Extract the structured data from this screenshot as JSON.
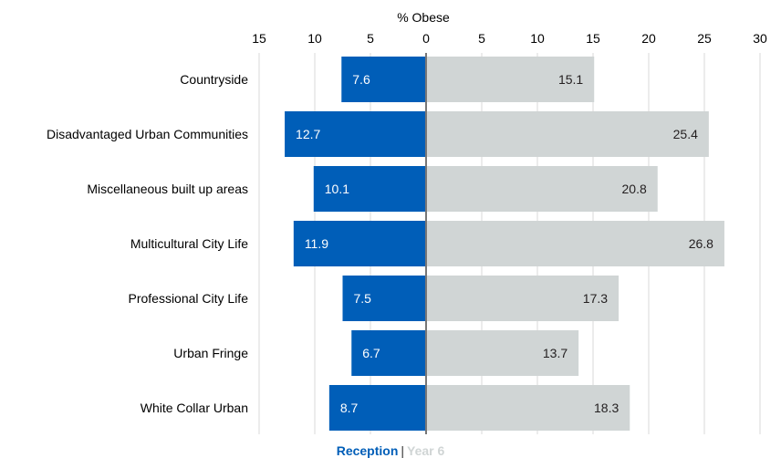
{
  "chart_data": {
    "type": "bar",
    "orientation": "horizontal-diverging",
    "title": "",
    "xlabel": "% Obese",
    "categories": [
      "Countryside",
      "Disadvantaged Urban Communities",
      "Miscellaneous built up areas",
      "Multicultural City Life",
      "Professional City Life",
      "Urban Fringe",
      "White Collar Urban"
    ],
    "series": [
      {
        "name": "Reception",
        "color": "#005EB8",
        "label_color": "#FFFFFF",
        "side": "left",
        "values": [
          7.6,
          12.7,
          10.1,
          11.9,
          7.5,
          6.7,
          8.7
        ]
      },
      {
        "name": "Year 6",
        "color": "#D0D5D5",
        "label_color": "#231F20",
        "side": "right",
        "values": [
          15.1,
          25.4,
          20.8,
          26.8,
          17.3,
          13.7,
          18.3
        ]
      }
    ],
    "xlim_left": [
      0,
      15
    ],
    "xlim_right": [
      0,
      30
    ],
    "ticks_left": [
      "15",
      "10",
      "5"
    ],
    "ticks_right": [
      "0",
      "5",
      "10",
      "15",
      "20",
      "25",
      "30"
    ],
    "grid": true,
    "legend_position": "bottom",
    "legend_separator": "|"
  }
}
